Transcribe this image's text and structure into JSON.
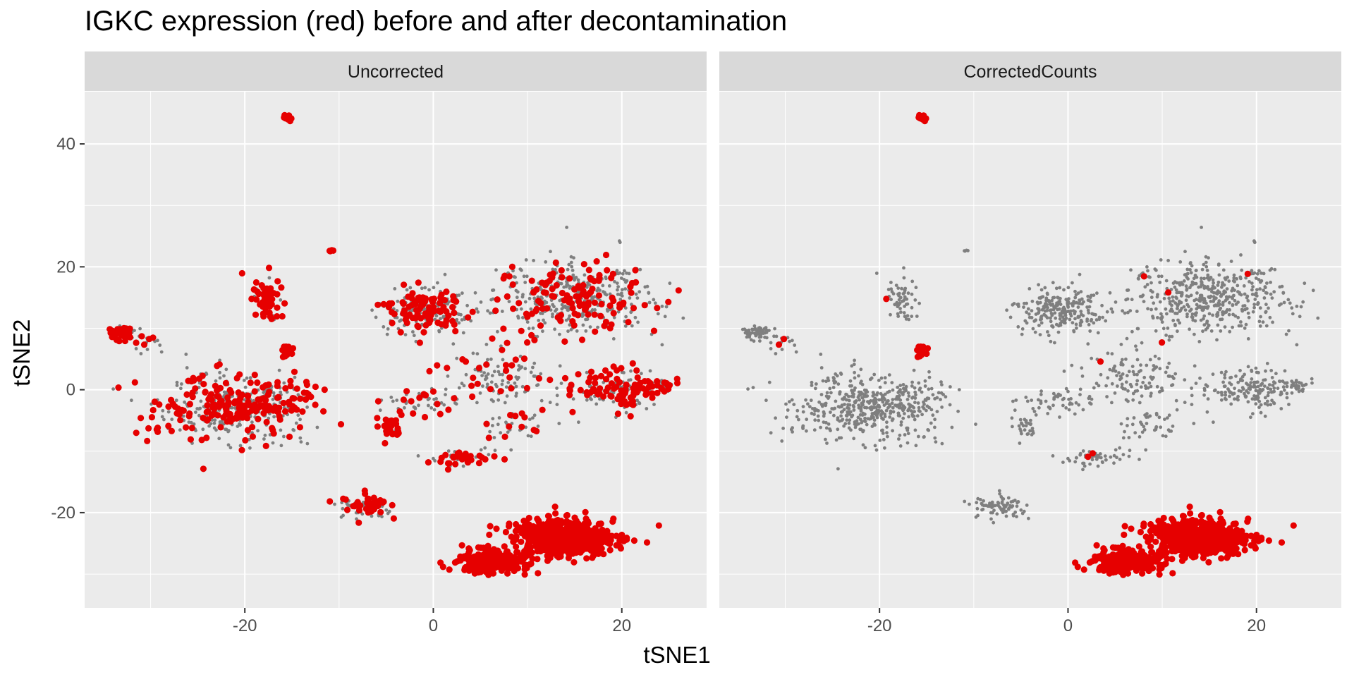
{
  "chart_data": {
    "type": "scatter",
    "title": "IGKC expression (red) before and after decontamination",
    "xlabel": "tSNE1",
    "ylabel": "tSNE2",
    "xlim": [
      -37,
      29
    ],
    "ylim": [
      -35.5,
      48.5
    ],
    "x_ticks": [
      -20,
      0,
      20
    ],
    "y_ticks": [
      -20,
      0,
      20,
      40
    ],
    "x_tick_labels": [
      "-20",
      "0",
      "20"
    ],
    "y_tick_labels": [
      "-20",
      "0",
      "20",
      "40"
    ],
    "grid": true,
    "colors": {
      "panel_bg": "#EBEBEB",
      "strip_bg": "#D9D9D9",
      "grid": "#FFFFFF",
      "background_cells": "#7F7F7F",
      "expressing_cells": "#E60000"
    },
    "series": [
      {
        "name": "Uncorrected",
        "color": "#E60000"
      },
      {
        "name": "CorrectedCounts",
        "color": "#E60000"
      }
    ],
    "clusters": [
      {
        "cx": 15,
        "cy": 15,
        "sx": 5.5,
        "sy": 4,
        "count": 460,
        "red_uncorrected": 0.3,
        "red_corrected": 0.004
      },
      {
        "cx": -1,
        "cy": 13,
        "sx": 3,
        "sy": 2.5,
        "count": 230,
        "red_uncorrected": 0.45,
        "red_corrected": 0
      },
      {
        "cx": 19,
        "cy": 0,
        "sx": 3.5,
        "sy": 2.5,
        "count": 170,
        "red_uncorrected": 0.45,
        "red_corrected": 0
      },
      {
        "cx": -21,
        "cy": -3,
        "sx": 5.5,
        "sy": 3.5,
        "count": 480,
        "red_uncorrected": 0.38,
        "red_corrected": 0.003
      },
      {
        "cx": -33,
        "cy": 9.5,
        "sx": 1,
        "sy": 0.8,
        "count": 60,
        "red_uncorrected": 0.6,
        "red_corrected": 0
      },
      {
        "cx": -30,
        "cy": 7.5,
        "sx": 0.8,
        "sy": 1,
        "count": 14,
        "red_uncorrected": 0.5,
        "red_corrected": 0.07
      },
      {
        "cx": -17.5,
        "cy": 15,
        "sx": 1.1,
        "sy": 2.5,
        "count": 60,
        "red_uncorrected": 0.8,
        "red_corrected": 0.03
      },
      {
        "cx": -15.5,
        "cy": 6.5,
        "sx": 0.5,
        "sy": 1,
        "count": 14,
        "red_uncorrected": 1,
        "red_corrected": 1
      },
      {
        "cx": -15.5,
        "cy": 44.2,
        "sx": 0.4,
        "sy": 0.5,
        "count": 10,
        "red_uncorrected": 1,
        "red_corrected": 1
      },
      {
        "cx": -11,
        "cy": 22.6,
        "sx": 0.2,
        "sy": 0.2,
        "count": 4,
        "red_uncorrected": 1,
        "red_corrected": 0
      },
      {
        "cx": -7,
        "cy": -19,
        "sx": 2,
        "sy": 1.3,
        "count": 80,
        "red_uncorrected": 0.5,
        "red_corrected": 0.02
      },
      {
        "cx": -4.5,
        "cy": -6,
        "sx": 0.8,
        "sy": 1.2,
        "count": 30,
        "red_uncorrected": 0.7,
        "red_corrected": 0
      },
      {
        "cx": 3,
        "cy": -11,
        "sx": 2.5,
        "sy": 1,
        "count": 50,
        "red_uncorrected": 0.5,
        "red_corrected": 0.02
      },
      {
        "cx": 8,
        "cy": -6,
        "sx": 2,
        "sy": 2,
        "count": 40,
        "red_uncorrected": 0.3,
        "red_corrected": 0.02
      },
      {
        "cx": 7,
        "cy": 2,
        "sx": 3.5,
        "sy": 3,
        "count": 110,
        "red_uncorrected": 0.25,
        "red_corrected": 0.01
      },
      {
        "cx": -1,
        "cy": -2,
        "sx": 2.5,
        "sy": 1.5,
        "count": 50,
        "red_uncorrected": 0.35,
        "red_corrected": 0
      },
      {
        "cx": 14,
        "cy": -24,
        "sx": 3.5,
        "sy": 2,
        "count": 500,
        "red_uncorrected": 1,
        "red_corrected": 1
      },
      {
        "cx": 6,
        "cy": -28,
        "sx": 2.5,
        "sy": 1.2,
        "count": 230,
        "red_uncorrected": 1,
        "red_corrected": 1
      },
      {
        "cx": 24,
        "cy": 0.5,
        "sx": 1,
        "sy": 0.8,
        "count": 25,
        "red_uncorrected": 0.6,
        "red_corrected": 0
      }
    ]
  }
}
